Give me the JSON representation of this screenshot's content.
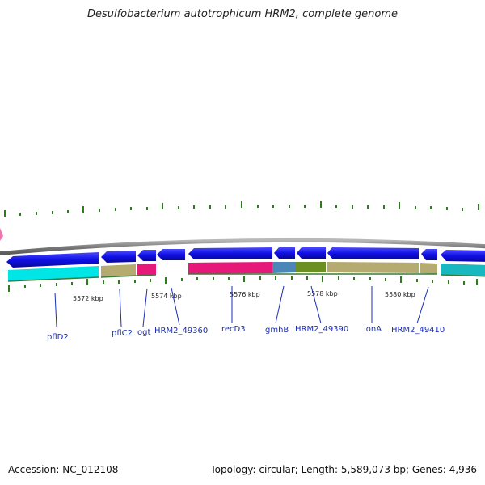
{
  "title": "Desulfobacterium autotrophicum HRM2, complete genome",
  "footer": {
    "accession": "Accession: NC_012108",
    "stats": "Topology: circular; Length: 5,589,073 bp; Genes: 4,936"
  },
  "scale_labels": [
    "5572 kbp",
    "5574 kbp",
    "5576 kbp",
    "5578 kbp",
    "5580 kbp"
  ],
  "gene_labels": [
    "pflD2",
    "pflC2",
    "ogt",
    "HRM2_49360",
    "recD3",
    "gmhB",
    "HRM2_49390",
    "lonA",
    "HRM2_49410"
  ],
  "colors": {
    "backbone": "#8c8c8c",
    "tick": "#2e7d1c",
    "gene_arrow": "#1010e6",
    "label": "#1a2eb8",
    "cog_cyan": "#00e5e5",
    "cog_khaki": "#b5aa70",
    "cog_magenta": "#e6197a",
    "cog_steelblue": "#4a86b8",
    "cog_olive": "#6b8f23",
    "cog_teal": "#17b8c0"
  }
}
